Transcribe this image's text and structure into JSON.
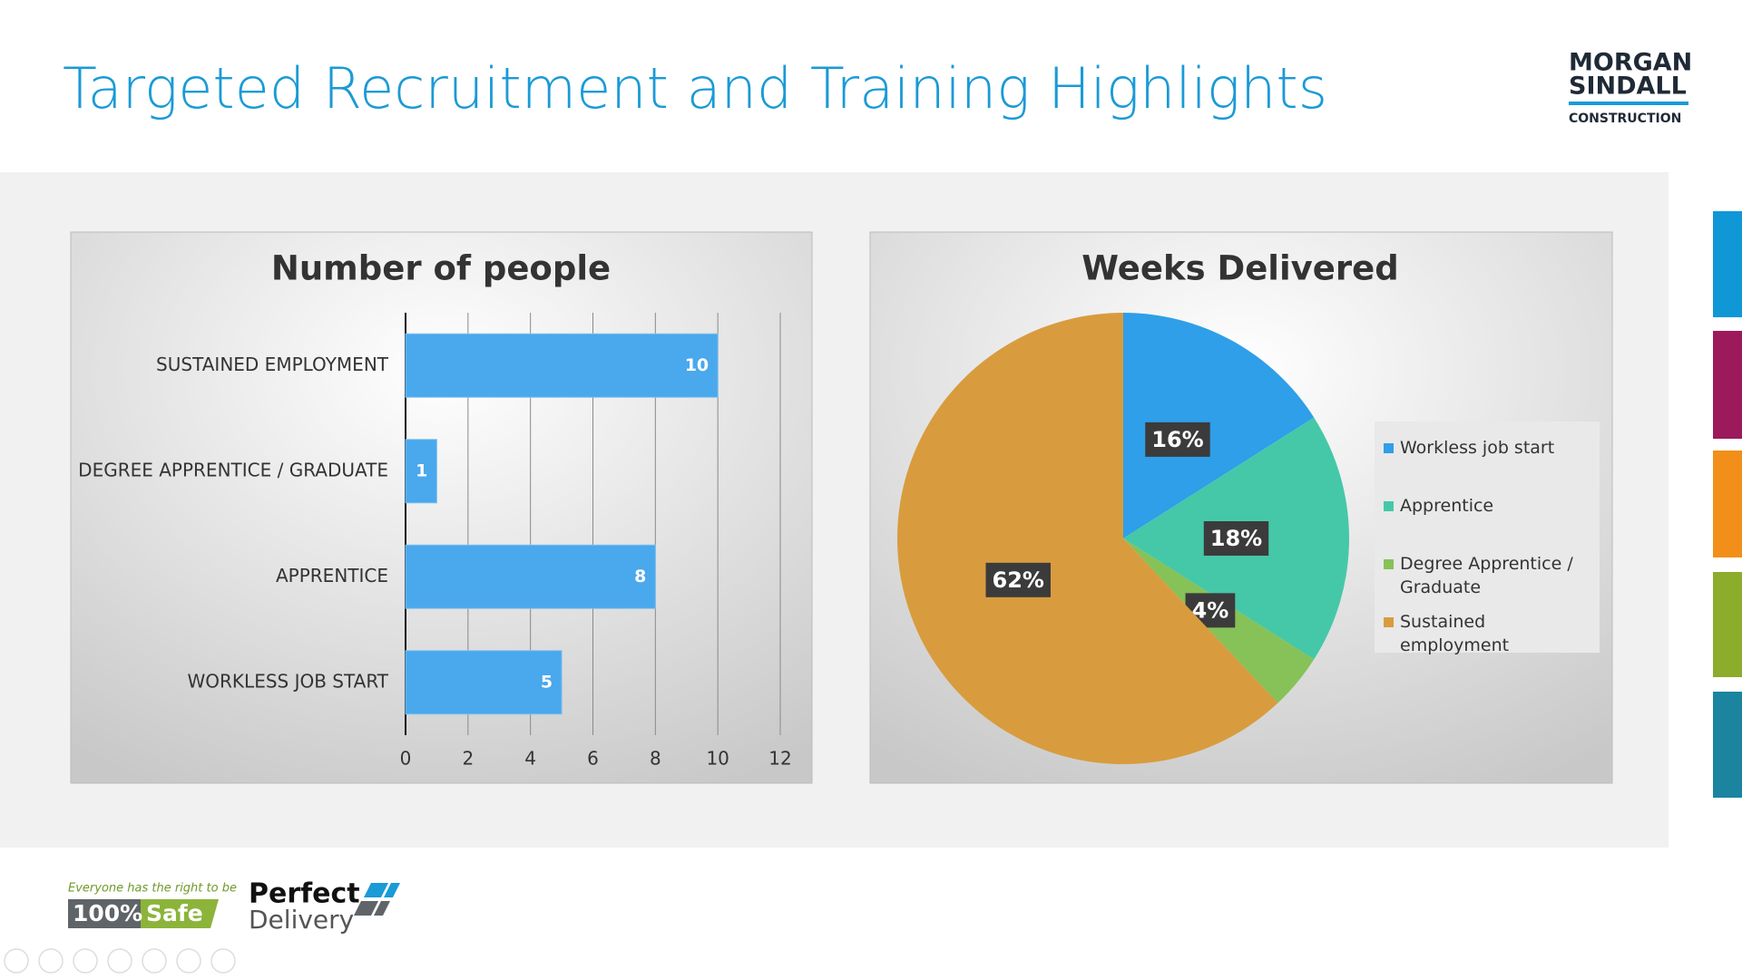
{
  "slide": {
    "title": "Targeted Recruitment and Training Highlights",
    "logo": {
      "line1": "MORGAN",
      "line2": "SINDALL",
      "line3": "CONSTRUCTION"
    },
    "footer": {
      "tagline": "Everyone has the right to be",
      "badge_number": "100%",
      "badge_word": "Safe",
      "brand_line1": "Perfect",
      "brand_line2": "Delivery"
    }
  },
  "chart_data": [
    {
      "type": "bar",
      "orientation": "horizontal",
      "title": "Number of people",
      "categories": [
        "SUSTAINED EMPLOYMENT",
        "DEGREE APPRENTICE / GRADUATE",
        "APPRENTICE",
        "WORKLESS JOB START"
      ],
      "values": [
        10,
        1,
        8,
        5
      ],
      "color": "#4aa8ec",
      "xlim": [
        0,
        12
      ],
      "xticks": [
        0,
        2,
        4,
        6,
        8,
        10,
        12
      ],
      "grid": true,
      "data_labels": true
    },
    {
      "type": "pie",
      "title": "Weeks Delivered",
      "categories": [
        "Workless job start",
        "Apprentice",
        "Degree Apprentice / Graduate",
        "Sustained employment"
      ],
      "values": [
        16,
        18,
        4,
        62
      ],
      "value_labels": [
        "16%",
        "18%",
        "4%",
        "62%"
      ],
      "colors": [
        "#2e9fe8",
        "#45c8a8",
        "#86c257",
        "#d89c3e"
      ],
      "legend": "right"
    }
  ]
}
